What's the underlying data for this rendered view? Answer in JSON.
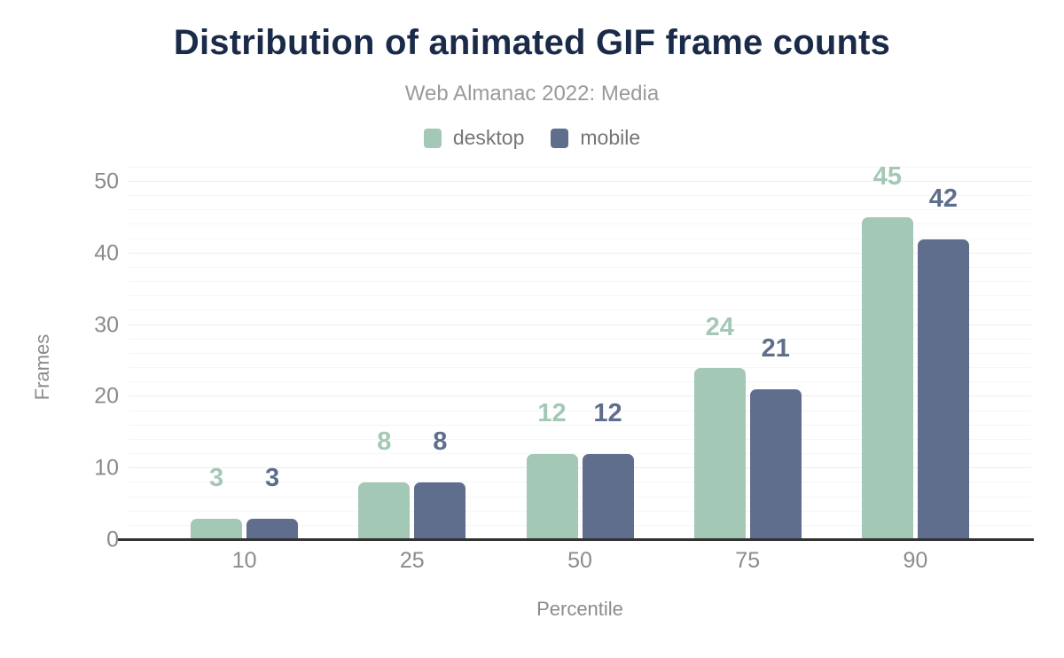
{
  "chart_data": {
    "type": "bar",
    "title": "Distribution of animated GIF frame counts",
    "subtitle": "Web Almanac 2022: Media",
    "categories": [
      "10",
      "25",
      "50",
      "75",
      "90"
    ],
    "series": [
      {
        "name": "desktop",
        "color": "#a4c8b6",
        "values": [
          3,
          8,
          12,
          24,
          45
        ]
      },
      {
        "name": "mobile",
        "color": "#5e6e8c",
        "values": [
          3,
          8,
          12,
          21,
          42
        ]
      }
    ],
    "xlabel": "Percentile",
    "ylabel": "Frames",
    "ylim": [
      0,
      50
    ],
    "yticks": [
      0,
      10,
      20,
      30,
      40,
      50
    ],
    "gridline_step": 2,
    "grid": "horizontal",
    "legend_position": "top",
    "bar_value_labels": true,
    "colors": {
      "title": "#1a2b49",
      "subtitle": "#9a9a9a",
      "tick_labels": "#8b8b8b",
      "legend_text": "#757575",
      "axis_line": "#333333"
    }
  }
}
